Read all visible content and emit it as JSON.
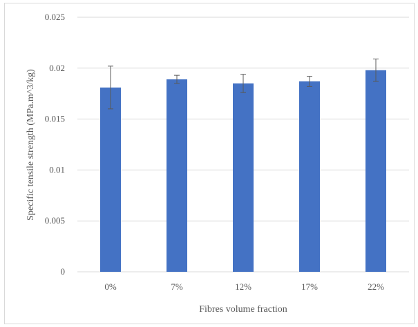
{
  "chart_data": {
    "type": "bar",
    "title": "",
    "xlabel": "Fibres volume fraction",
    "ylabel": "Specific tensile strength (MPa.m^3/kg)",
    "categories": [
      "0%",
      "7%",
      "12%",
      "17%",
      "22%"
    ],
    "values": [
      0.0181,
      0.0189,
      0.0185,
      0.0187,
      0.0198
    ],
    "error_bars": [
      0.0021,
      0.0004,
      0.0009,
      0.0005,
      0.0011
    ],
    "ylim": [
      0,
      0.025
    ],
    "yticks": [
      0,
      0.005,
      0.01,
      0.015,
      0.02,
      0.025
    ],
    "ytick_labels": [
      "0",
      "0.005",
      "0.01",
      "0.015",
      "0.02",
      "0.025"
    ],
    "grid": true,
    "legend": "none",
    "bar_color": "#4472c4",
    "grid_color": "#d9d9d9",
    "error_color": "#595959"
  }
}
